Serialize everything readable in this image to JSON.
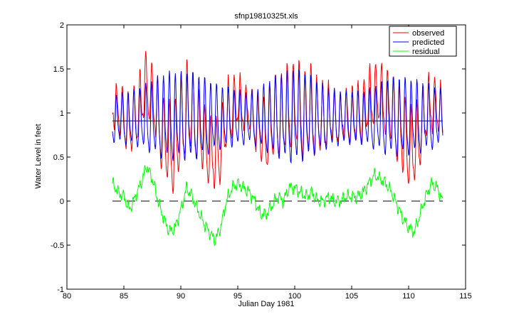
{
  "chart_data": {
    "type": "line",
    "title": "sfnp19810325t.xls",
    "xlabel": "Julian Day 1981",
    "ylabel": "Water Level in feet",
    "xlim": [
      80,
      115
    ],
    "ylim": [
      -1,
      2
    ],
    "xticks": [
      80,
      85,
      90,
      95,
      100,
      105,
      110,
      115
    ],
    "yticks": [
      -1,
      -0.5,
      0,
      0.5,
      1,
      1.5,
      2
    ],
    "xtick_labels": [
      "80",
      "85",
      "90",
      "95",
      "100",
      "105",
      "110",
      "115"
    ],
    "ytick_labels": [
      "-1",
      "-0.5",
      "0",
      "0.5",
      "1",
      "1.5",
      "2"
    ],
    "grid": false,
    "legend_position": "top-right",
    "colors": {
      "observed": "#ff0000",
      "predicted": "#0000ff",
      "residual": "#00ff00",
      "reference": "#000000"
    },
    "series": [
      {
        "name": "observed"
      },
      {
        "name": "predicted"
      },
      {
        "name": "residual"
      }
    ],
    "x_range": [
      84,
      113
    ],
    "sampling_interval_days": 0.04,
    "tidal_period_days": 0.5175,
    "predicted_mean": 0.91,
    "residual_anchors": {
      "x": [
        84.0,
        84.5,
        85.0,
        85.5,
        86.0,
        86.5,
        87.0,
        87.5,
        88.0,
        88.5,
        89.0,
        89.5,
        90.0,
        90.5,
        91.0,
        91.5,
        92.0,
        92.5,
        93.0,
        93.5,
        94.0,
        94.5,
        95.0,
        95.5,
        96.0,
        96.5,
        97.0,
        97.5,
        98.0,
        98.5,
        99.0,
        99.5,
        100.0,
        100.5,
        101.0,
        101.5,
        102.0,
        102.5,
        103.0,
        103.5,
        104.0,
        104.5,
        105.0,
        105.5,
        106.0,
        106.5,
        107.0,
        107.5,
        108.0,
        108.5,
        109.0,
        109.5,
        110.0,
        110.5,
        111.0,
        111.5,
        112.0,
        112.5,
        113.0
      ],
      "y": [
        0.2,
        0.1,
        0.05,
        -0.1,
        0.05,
        0.2,
        0.4,
        0.25,
        0.0,
        -0.2,
        -0.35,
        -0.3,
        -0.1,
        0.15,
        0.05,
        -0.1,
        -0.25,
        -0.35,
        -0.45,
        -0.3,
        0.0,
        0.15,
        0.2,
        0.15,
        0.1,
        0.0,
        -0.15,
        -0.15,
        -0.05,
        0.05,
        0.0,
        0.15,
        0.15,
        0.1,
        0.05,
        0.1,
        0.0,
        0.0,
        0.05,
        0.0,
        0.0,
        0.05,
        0.05,
        0.05,
        0.1,
        0.2,
        0.3,
        0.25,
        0.2,
        0.1,
        -0.05,
        -0.2,
        -0.3,
        -0.35,
        -0.15,
        0.05,
        0.2,
        0.15,
        0.0
      ]
    },
    "predicted_amplitude_anchors": {
      "x": [
        84,
        86,
        87,
        88,
        89,
        90,
        91,
        92,
        93,
        94,
        95,
        96,
        97,
        98,
        99,
        100,
        101,
        102,
        103,
        104,
        105,
        106,
        107,
        108,
        109,
        110,
        111,
        112,
        113
      ],
      "y": [
        0.3,
        0.35,
        0.42,
        0.5,
        0.55,
        0.55,
        0.55,
        0.5,
        0.42,
        0.38,
        0.35,
        0.32,
        0.38,
        0.48,
        0.55,
        0.6,
        0.55,
        0.45,
        0.38,
        0.34,
        0.33,
        0.33,
        0.4,
        0.47,
        0.5,
        0.48,
        0.45,
        0.4,
        0.35
      ]
    },
    "reference_lines": [
      {
        "name": "predicted-mean-line",
        "y": 0.91,
        "style": "solid"
      },
      {
        "name": "zero-line",
        "y": 0,
        "style": "dashed"
      }
    ]
  }
}
